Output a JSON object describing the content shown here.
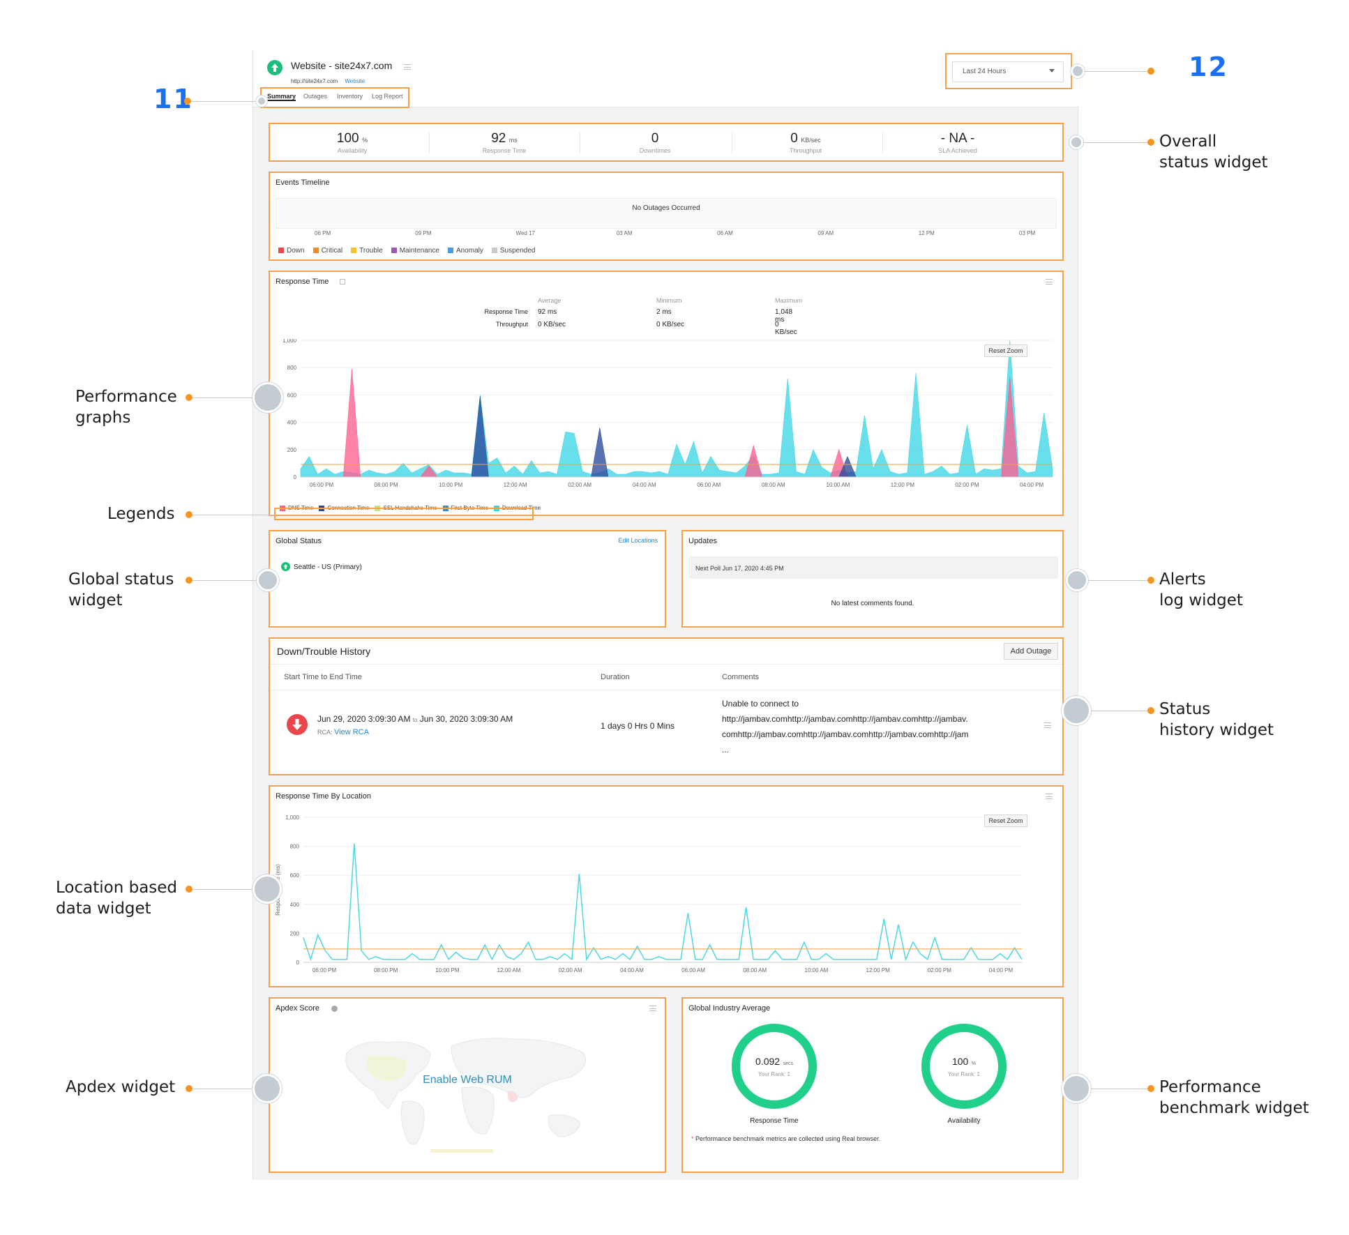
{
  "header": {
    "site_title": "Website - site24x7.com",
    "site_url": "http://site24x7.com",
    "site_type": "Website",
    "tabs": [
      "Summary",
      "Outages",
      "Inventory",
      "Log Report"
    ],
    "period": "Last 24 Hours"
  },
  "overall": [
    {
      "value": "100",
      "unit": "%",
      "label": "Availability"
    },
    {
      "value": "92",
      "unit": "ms",
      "label": "Response Time"
    },
    {
      "value": "0",
      "unit": "",
      "label": "Downtimes"
    },
    {
      "value": "0",
      "unit": "KB/sec",
      "label": "Throughput"
    },
    {
      "value": "- NA -",
      "unit": "",
      "label": "SLA Achieved"
    }
  ],
  "events": {
    "title": "Events Timeline",
    "message": "No Outages Occurred",
    "ticks": [
      "06 PM",
      "09 PM",
      "Wed 17",
      "03 AM",
      "06 AM",
      "09 AM",
      "12 PM",
      "03 PM"
    ],
    "legend": [
      {
        "label": "Down",
        "color": "#e8474c"
      },
      {
        "label": "Critical",
        "color": "#f28a30"
      },
      {
        "label": "Trouble",
        "color": "#f7c233"
      },
      {
        "label": "Maintenance",
        "color": "#9b59b6"
      },
      {
        "label": "Anomaly",
        "color": "#4a9be0"
      },
      {
        "label": "Suspended",
        "color": "#c8c8c8"
      }
    ]
  },
  "response": {
    "title": "Response Time",
    "col_heads": [
      "Average",
      "Minimum",
      "Maximum"
    ],
    "rows": [
      {
        "label": "Response Time",
        "values": [
          "92 ms",
          "2 ms",
          "1,048 ms"
        ]
      },
      {
        "label": "Throughput",
        "values": [
          "0 KB/sec",
          "0 KB/sec",
          "0 KB/sec"
        ]
      }
    ],
    "reset_zoom": "Reset Zoom",
    "legend": [
      {
        "label": "DNS Time",
        "color": "#ff5f8f"
      },
      {
        "label": "Connection Time",
        "color": "#2a4a9c"
      },
      {
        "label": "SSL Handshake Time",
        "color": "#b8e986"
      },
      {
        "label": "First Byte Time",
        "color": "#2d8fd5"
      },
      {
        "label": "Download Time",
        "color": "#3fd6e6"
      }
    ]
  },
  "chart_data": [
    {
      "type": "area",
      "title": "Response Time",
      "xlabel": "",
      "ylabel": "",
      "ylim": [
        0,
        1000
      ],
      "yticks": [
        0,
        200,
        400,
        600,
        800,
        "1,000"
      ],
      "xticks": [
        "06:00 PM",
        "08:00 PM",
        "10:00 PM",
        "12:00 AM",
        "02:00 AM",
        "04:00 AM",
        "06:00 AM",
        "08:00 AM",
        "10:00 AM",
        "12:00 PM",
        "02:00 PM",
        "04:00 PM"
      ],
      "average_line": 92,
      "series": [
        {
          "name": "Download Time",
          "color": "#3fd6e6",
          "values": [
            60,
            150,
            20,
            60,
            20,
            40,
            30,
            20,
            50,
            30,
            20,
            40,
            100,
            30,
            60,
            90,
            20,
            50,
            30,
            30,
            20,
            600,
            100,
            140,
            30,
            80,
            20,
            120,
            30,
            40,
            20,
            330,
            320,
            40,
            20,
            30,
            60,
            20,
            20,
            40,
            40,
            30,
            40,
            20,
            240,
            90,
            260,
            30,
            150,
            50,
            40,
            30,
            80,
            160,
            20,
            20,
            30,
            720,
            40,
            20,
            200,
            70,
            30,
            50,
            30,
            40,
            450,
            60,
            200,
            40,
            20,
            30,
            760,
            20,
            40,
            80,
            20,
            30,
            380,
            20,
            60,
            50,
            60,
            1000,
            80,
            30,
            40,
            470,
            60
          ]
        },
        {
          "name": "DNS Time",
          "color": "#ff5f8f",
          "values": [
            0,
            0,
            0,
            0,
            0,
            0,
            790,
            0,
            0,
            0,
            0,
            0,
            0,
            0,
            0,
            80,
            0,
            0,
            0,
            0,
            0,
            0,
            0,
            0,
            0,
            0,
            0,
            0,
            0,
            0,
            0,
            0,
            0,
            0,
            0,
            0,
            0,
            0,
            0,
            0,
            0,
            0,
            0,
            0,
            0,
            0,
            0,
            0,
            0,
            0,
            0,
            0,
            0,
            230,
            0,
            0,
            0,
            0,
            0,
            0,
            0,
            0,
            0,
            200,
            0,
            0,
            0,
            0,
            0,
            0,
            0,
            0,
            0,
            0,
            0,
            0,
            0,
            0,
            0,
            0,
            0,
            0,
            0,
            730,
            0,
            0,
            0,
            0,
            0
          ]
        },
        {
          "name": "Connection Time",
          "color": "#2a4a9c",
          "values": [
            0,
            0,
            0,
            0,
            0,
            0,
            0,
            0,
            0,
            0,
            0,
            0,
            0,
            0,
            0,
            0,
            0,
            0,
            0,
            0,
            0,
            590,
            0,
            0,
            0,
            0,
            0,
            0,
            0,
            0,
            0,
            0,
            0,
            0,
            0,
            360,
            0,
            0,
            0,
            0,
            0,
            0,
            0,
            0,
            0,
            0,
            0,
            0,
            0,
            0,
            0,
            0,
            0,
            0,
            0,
            0,
            0,
            0,
            0,
            0,
            0,
            0,
            0,
            0,
            150,
            0,
            0,
            0,
            0,
            0,
            0,
            0,
            0,
            0,
            0,
            0,
            0,
            0,
            0,
            0,
            0,
            0,
            0,
            0,
            0,
            0,
            0,
            0,
            0
          ]
        }
      ]
    },
    {
      "type": "line",
      "title": "Response Time By Location",
      "xlabel": "",
      "ylabel": "Response Time (ms)",
      "ylim": [
        0,
        1000
      ],
      "yticks": [
        0,
        200,
        400,
        600,
        800,
        "1,000"
      ],
      "xticks": [
        "06:00 PM",
        "08:00 PM",
        "10:00 PM",
        "12:00 AM",
        "02:00 AM",
        "04:00 AM",
        "06:00 AM",
        "08:00 AM",
        "10:00 AM",
        "12:00 PM",
        "02:00 PM",
        "04:00 PM"
      ],
      "average_line": 92,
      "series": [
        {
          "name": "Seattle - US (Primary)",
          "color": "#3fd6e6",
          "values": [
            170,
            20,
            190,
            80,
            20,
            20,
            20,
            820,
            80,
            20,
            40,
            20,
            20,
            20,
            20,
            60,
            20,
            20,
            20,
            120,
            20,
            70,
            30,
            20,
            20,
            120,
            20,
            120,
            40,
            20,
            60,
            140,
            20,
            20,
            40,
            20,
            60,
            20,
            610,
            20,
            100,
            20,
            40,
            20,
            60,
            20,
            110,
            20,
            20,
            40,
            20,
            20,
            20,
            340,
            20,
            20,
            120,
            20,
            20,
            20,
            20,
            380,
            20,
            20,
            20,
            80,
            20,
            20,
            20,
            140,
            20,
            20,
            60,
            20,
            20,
            20,
            20,
            20,
            20,
            20,
            300,
            20,
            260,
            20,
            140,
            60,
            20,
            170,
            20,
            20,
            20,
            20,
            100,
            20,
            20,
            20,
            60,
            20,
            100,
            20
          ]
        }
      ]
    }
  ],
  "global_status": {
    "title": "Global Status",
    "edit": "Edit Locations",
    "location": "Seattle - US (Primary)"
  },
  "updates": {
    "title": "Updates",
    "next_poll": "Next Poll Jun 17, 2020 4:45 PM",
    "empty": "No latest comments found."
  },
  "history": {
    "title": "Down/Trouble History",
    "add": "Add Outage",
    "cols": [
      "Start Time to End Time",
      "Duration",
      "Comments"
    ],
    "row": {
      "start": "Jun 29, 2020 3:09:30 AM",
      "to": "to",
      "end": "Jun 30, 2020 3:09:30 AM",
      "rca_label": "RCA:",
      "rca_link": "View RCA",
      "duration": "1 days 0 Hrs 0 Mins",
      "comment_lines": [
        "Unable to connect to",
        "http://jambav.comhttp://jambav.comhttp://jambav.comhttp://jambav.",
        "comhttp://jambav.comhttp://jambav.comhttp://jambav.comhttp://jam",
        "..."
      ]
    }
  },
  "location": {
    "title": "Response Time By Location",
    "reset_zoom": "Reset Zoom"
  },
  "apdex": {
    "title": "Apdex Score",
    "cta": "Enable Web RUM"
  },
  "benchmark": {
    "title": "Global Industry Average",
    "items": [
      {
        "value": "0.092",
        "unit": "secs",
        "rank": "Your Rank: 1",
        "label": "Response Time"
      },
      {
        "value": "100",
        "unit": "%",
        "rank": "Your Rank: 1",
        "label": "Availability"
      }
    ],
    "note": "Performance benchmark metrics are collected using Real browser."
  },
  "callouts": {
    "num_11": "11",
    "num_12": "12",
    "overall": [
      "Overall",
      "status widget"
    ],
    "performance": [
      "Performance",
      "graphs"
    ],
    "legends": [
      "Legends"
    ],
    "global": [
      "Global status",
      "widget"
    ],
    "alerts": [
      "Alerts",
      "log widget"
    ],
    "status_history": [
      "Status",
      "history widget"
    ],
    "location": [
      "Location based",
      "data widget"
    ],
    "apdex": [
      "Apdex widget"
    ],
    "benchmark": [
      "Performance",
      "benchmark widget"
    ]
  },
  "colors": {
    "accent": "#f5a04a",
    "pin": "#f7941d",
    "number": "#1a6ff2",
    "up": "#1bbf7a",
    "down": "#e8474c",
    "ring": "#1fcf8a"
  }
}
